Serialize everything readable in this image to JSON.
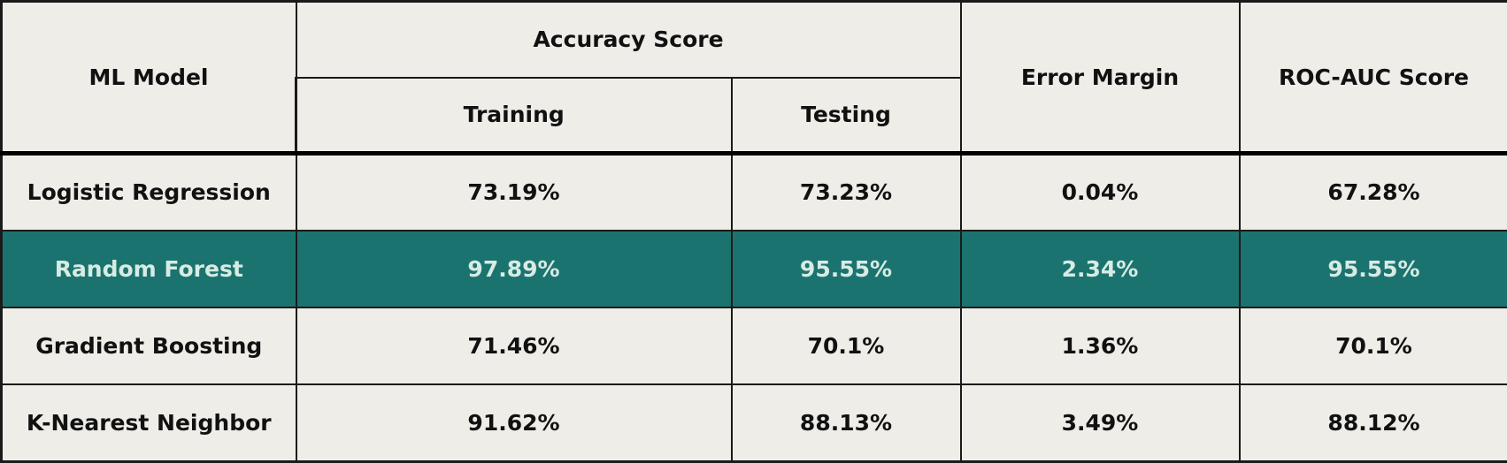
{
  "table": {
    "headers": {
      "model": "ML Model",
      "accuracy_group": "Accuracy Score",
      "training": "Training",
      "testing": "Testing",
      "error_margin": "Error Margin",
      "roc_auc": "ROC-AUC Score"
    },
    "rows": [
      {
        "model": "Logistic Regression",
        "training": "73.19%",
        "testing": "73.23%",
        "error_margin": "0.04%",
        "roc_auc": "67.28%"
      },
      {
        "model": "Random Forest",
        "training": "97.89%",
        "testing": "95.55%",
        "error_margin": "2.34%",
        "roc_auc": "95.55%"
      },
      {
        "model": "Gradient Boosting",
        "training": "71.46%",
        "testing": "70.1%",
        "error_margin": "1.36%",
        "roc_auc": "70.1%"
      },
      {
        "model": "K-Nearest Neighbor",
        "training": "91.62%",
        "testing": "88.13%",
        "error_margin": "3.49%",
        "roc_auc": "88.12%"
      }
    ],
    "highlighted_row": "Random Forest",
    "colors": {
      "background": "#efede8",
      "highlight": "#1b7370",
      "highlight_text": "#d8ebe3",
      "text": "#111111"
    }
  }
}
